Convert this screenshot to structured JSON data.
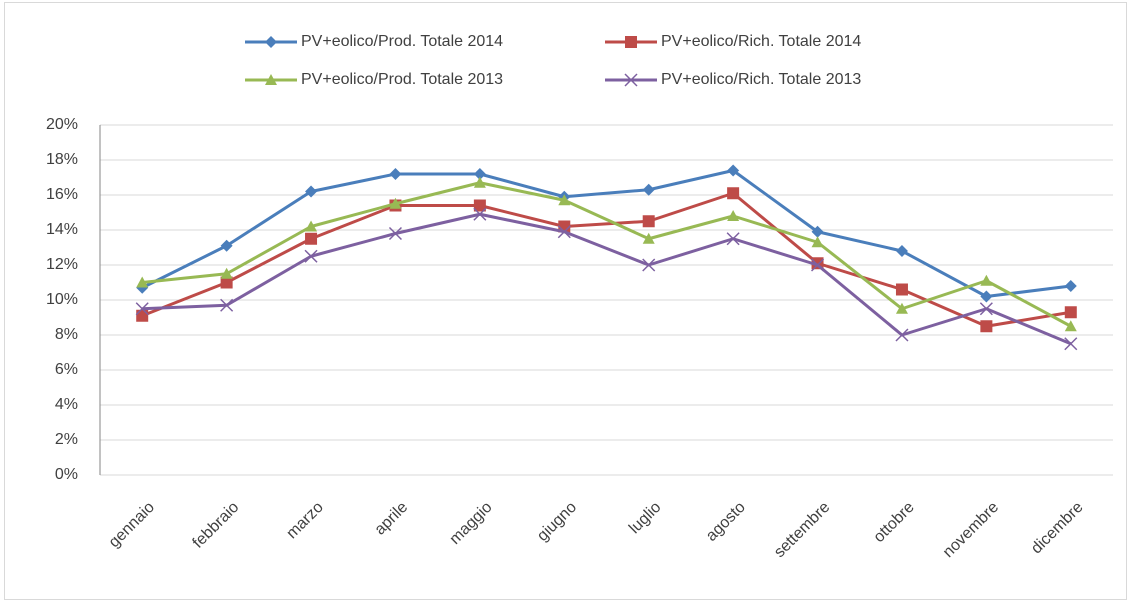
{
  "chart_data": {
    "type": "line",
    "categories": [
      "gennaio",
      "febbraio",
      "marzo",
      "aprile",
      "maggio",
      "giugno",
      "luglio",
      "agosto",
      "settembre",
      "ottobre",
      "novembre",
      "dicembre"
    ],
    "series": [
      {
        "name": "PV+eolico/Prod. Totale 2014",
        "color": "#4a7ebb",
        "marker": "diamond",
        "values": [
          10.7,
          13.1,
          16.2,
          17.2,
          17.2,
          15.9,
          16.3,
          17.4,
          13.9,
          12.8,
          10.2,
          10.8
        ]
      },
      {
        "name": "PV+eolico/Rich. Totale 2014",
        "color": "#be4b48",
        "marker": "square",
        "values": [
          9.1,
          11.0,
          13.5,
          15.4,
          15.4,
          14.2,
          14.5,
          16.1,
          12.1,
          10.6,
          8.5,
          9.3
        ]
      },
      {
        "name": "PV+eolico/Prod. Totale 2013",
        "color": "#98b954",
        "marker": "triangle",
        "values": [
          11.0,
          11.5,
          14.2,
          15.5,
          16.7,
          15.7,
          13.5,
          14.8,
          13.3,
          9.5,
          11.1,
          8.5
        ]
      },
      {
        "name": "PV+eolico/Rich. Totale 2013",
        "color": "#7d60a0",
        "marker": "x",
        "values": [
          9.5,
          9.7,
          12.5,
          13.8,
          14.9,
          13.9,
          12.0,
          13.5,
          12.0,
          8.0,
          9.5,
          7.5
        ]
      }
    ],
    "ylim": [
      0,
      20
    ],
    "yticks": [
      {
        "value": 0,
        "label": "0%"
      },
      {
        "value": 2,
        "label": "2%"
      },
      {
        "value": 4,
        "label": "4%"
      },
      {
        "value": 6,
        "label": "6%"
      },
      {
        "value": 8,
        "label": "8%"
      },
      {
        "value": 10,
        "label": "10%"
      },
      {
        "value": 12,
        "label": "12%"
      },
      {
        "value": 14,
        "label": "14%"
      },
      {
        "value": 16,
        "label": "16%"
      },
      {
        "value": 18,
        "label": "18%"
      },
      {
        "value": 20,
        "label": "20%"
      }
    ],
    "grid": true,
    "legend": "top"
  }
}
